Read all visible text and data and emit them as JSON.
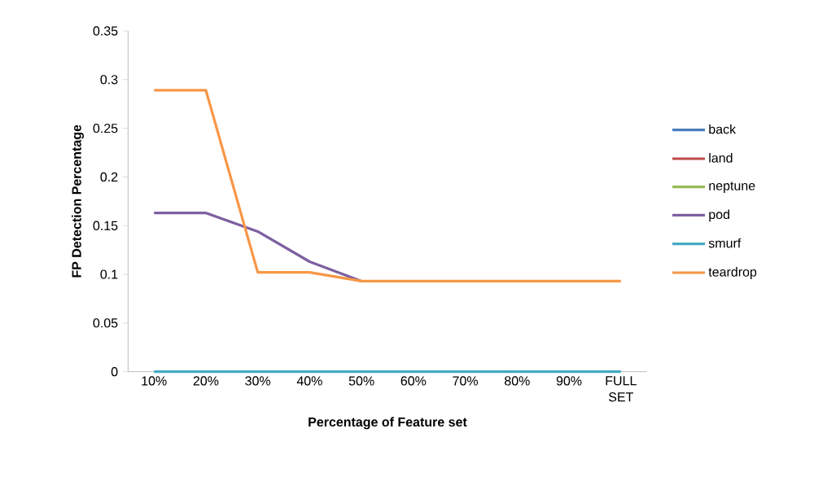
{
  "chart_data": {
    "type": "line",
    "xlabel": "Percentage of Feature set",
    "ylabel": "FP Detection Percentage",
    "categories": [
      "10%",
      "20%",
      "30%",
      "40%",
      "50%",
      "60%",
      "70%",
      "80%",
      "90%",
      "FULL SET"
    ],
    "series": [
      {
        "name": "back",
        "color": "#4a7ebb",
        "values": [
          null,
          null,
          null,
          null,
          null,
          null,
          null,
          null,
          null,
          null
        ]
      },
      {
        "name": "land",
        "color": "#be4b48",
        "values": [
          null,
          null,
          null,
          null,
          null,
          null,
          null,
          null,
          null,
          null
        ]
      },
      {
        "name": "neptune",
        "color": "#98b954",
        "values": [
          null,
          null,
          null,
          null,
          null,
          null,
          null,
          null,
          null,
          null
        ]
      },
      {
        "name": "pod",
        "color": "#7d60a0",
        "values": [
          0.163,
          0.163,
          0.144,
          0.113,
          0.093,
          null,
          null,
          null,
          null,
          null
        ]
      },
      {
        "name": "smurf",
        "color": "#46aac5",
        "values": [
          0,
          0,
          0,
          0,
          0,
          0,
          0,
          0,
          0,
          0
        ]
      },
      {
        "name": "teardrop",
        "color": "#f79646",
        "values": [
          0.289,
          0.289,
          0.102,
          0.102,
          0.093,
          0.093,
          0.093,
          0.093,
          0.093,
          0.093
        ]
      }
    ],
    "ylim": [
      0,
      0.35
    ],
    "yticks": [
      0,
      0.05,
      0.1,
      0.15,
      0.2,
      0.25,
      0.3,
      0.35
    ],
    "grid": false,
    "legend": "right",
    "marker": "none",
    "line_style": "solid"
  }
}
